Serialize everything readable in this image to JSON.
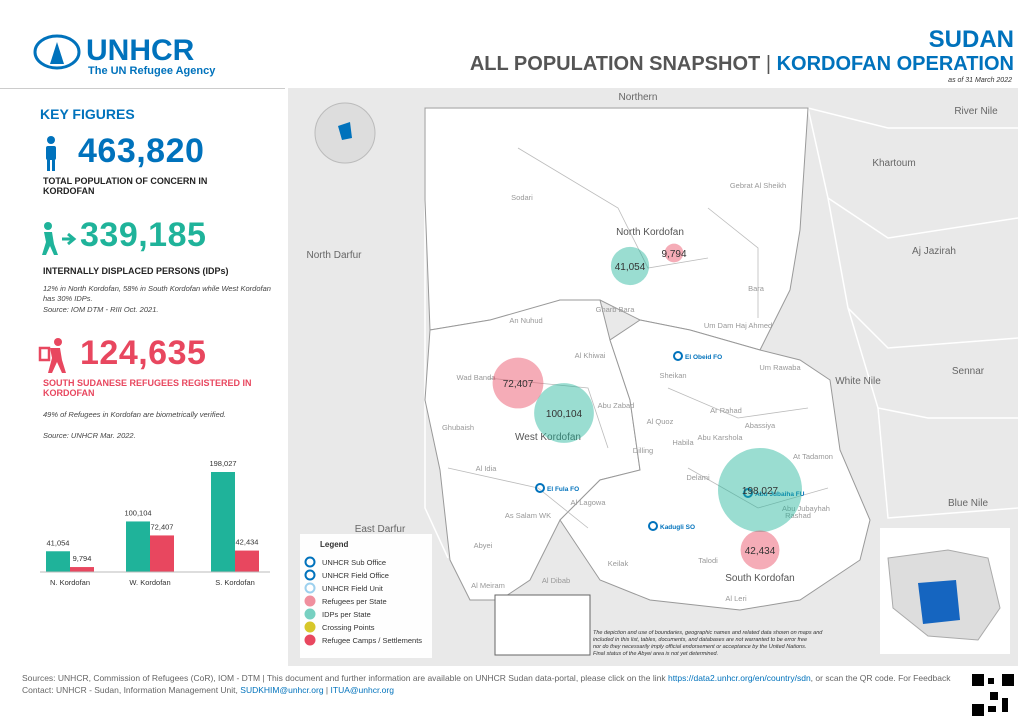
{
  "header": {
    "org": "UNHCR",
    "tagline": "The UN Refugee Agency",
    "country": "SUDAN",
    "title": "ALL POPULATION SNAPSHOT",
    "separator": "|",
    "operation": "KORDOFAN OPERATION",
    "date": "as of 31 March 2022"
  },
  "key_figures": {
    "heading": "KEY FIGURES",
    "items": [
      {
        "value": "463,820",
        "label": "TOTAL POPULATION OF CONCERN IN KORDOFAN"
      },
      {
        "value": "339,185",
        "label": "INTERNALLY DISPLACED PERSONS (IDPs)",
        "note": "12% in North Kordofan, 58% in South Kordofan while West Kordofan has 30% IDPs.",
        "source": "Source: IOM DTM - RIII Oct. 2021."
      },
      {
        "value": "124,635",
        "label": "SOUTH SUDANESE REFUGEES REGISTERED IN KORDOFAN",
        "note": "49% of Refugees in Kordofan are biometrically verified.",
        "source": "Source: UNHCR Mar. 2022."
      }
    ]
  },
  "chart_data": {
    "type": "bar",
    "categories": [
      "N. Kordofan",
      "W. Kordofan",
      "S. Kordofan"
    ],
    "series": [
      {
        "name": "IDPs per State",
        "color": "#1fb39a",
        "values": [
          41054,
          100104,
          198027
        ],
        "value_labels": [
          "41,054",
          "100,104",
          "198,027"
        ]
      },
      {
        "name": "Refugees per State",
        "color": "#e8475f",
        "values": [
          9794,
          72407,
          42434
        ],
        "value_labels": [
          "9,794",
          "72,407",
          "42,434"
        ]
      }
    ]
  },
  "map": {
    "regions": [
      "Northern",
      "River Nile",
      "Khartoum",
      "North Darfur",
      "Aj Jazirah",
      "White Nile",
      "Sennar",
      "Blue Nile",
      "East Darfur"
    ],
    "states": [
      "North Kordofan",
      "West Kordofan",
      "South Kordofan"
    ],
    "localities": [
      "Sodari",
      "Gebrat Al Sheikh",
      "Bara",
      "Gharb Bara",
      "Um Dam Haj Ahmed",
      "Um Rawaba",
      "Sheikan",
      "Ar Rahad",
      "An Nuhud",
      "Al Khiwai",
      "Wad Banda",
      "Abu Zabad",
      "Al Quoz",
      "Ghubaish",
      "Al Idia",
      "As Salam WK",
      "Al Lagowa",
      "Abyei",
      "Al Meiram",
      "Al Dibab",
      "Keilak",
      "Abu Karshola",
      "Abassiya",
      "At Tadamon",
      "Delami",
      "Habila",
      "Dilling",
      "Rashad",
      "Talodi",
      "Al Leri",
      "Abu Jubayhah"
    ],
    "offices": [
      "El Obeid FO",
      "El Fula FO",
      "Kadugli SO",
      "Abu Jubaiha FU"
    ],
    "legend": {
      "title": "Legend",
      "items": [
        "UNHCR Sub Office",
        "UNHCR Field Office",
        "UNHCR Field Unit",
        "Refugees per State",
        "IDPs per State",
        "Crossing Points",
        "Refugee Camps / Settlements"
      ]
    },
    "disclaimer": "The depiction and use of boundaries, geographic names and related data shown on maps and included in this list, tables, documents, and databases are not warranted to be error free nor do they necessarily imply official endorsement or acceptance by the United Nations. Final status of the Abyei area is not yet determined."
  },
  "footer": {
    "text1": "Sources: UNHCR, Commission of Refugees (CoR), IOM - DTM | This document and further information are available on UNHCR Sudan data-portal, please click on the link",
    "link": "https://data2.unhcr.org/en/country/sdn",
    "text2": ", or scan the QR code. For Feedback Contact: UNHCR - Sudan, Information Management Unit,",
    "email1": "SUDKHIM@unhcr.org",
    "sep": "|",
    "email2": "ITUA@unhcr.org"
  }
}
